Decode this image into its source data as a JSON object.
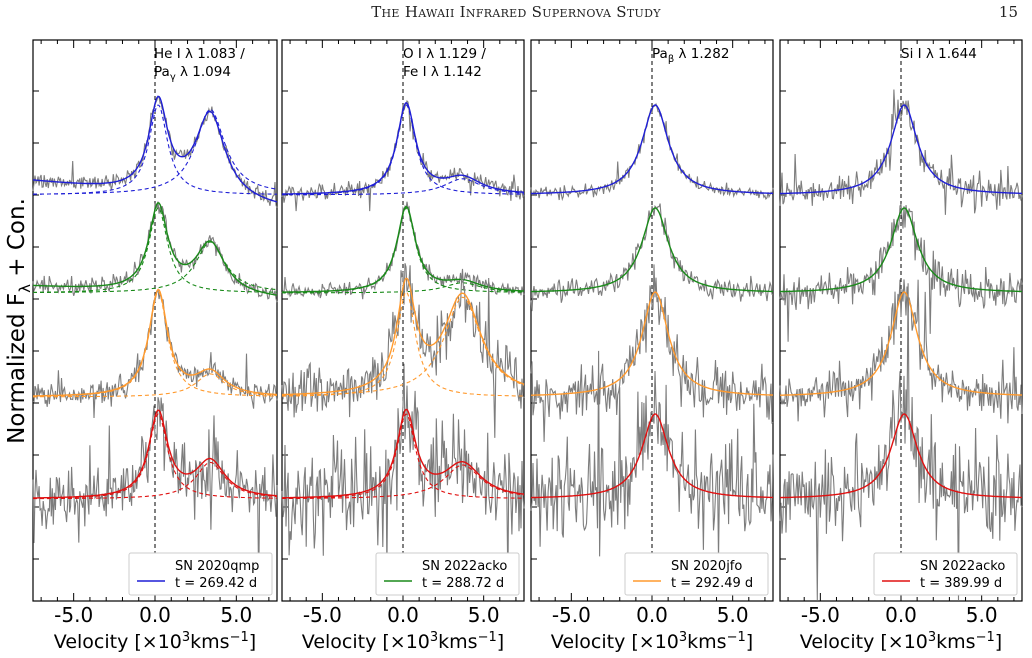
{
  "page": {
    "running_head": "The Hawaii Infrared Supernova Study",
    "page_number": "15"
  },
  "figure": {
    "ylabel_main": "Normalized F",
    "ylabel_sub": "λ",
    "ylabel_tail": " + Con.",
    "xlabel_main": "Velocity [×10",
    "xlabel_sup": "3",
    "xlabel_units": "kms",
    "xlabel_units_sup": "−1",
    "xlabel_end": "]",
    "xtick_labels": [
      "-5.0",
      "0.0",
      "5.0"
    ],
    "colors": {
      "epoch1": "#1f1fd6",
      "epoch2": "#1a8a1a",
      "epoch3": "#ff9a2e",
      "epoch4": "#e01010",
      "data": "#7d7d7d",
      "axes": "#000000"
    }
  },
  "chart_data": [
    {
      "type": "line",
      "panel": "He I 1.083 / Pa gamma 1.094",
      "line_label_1": "He I λ 1.083 /",
      "line_label_2": "Pa",
      "line_label_2_sub": "γ",
      "line_label_2_end": " λ 1.094",
      "legend": {
        "name": "SN 2020qmp",
        "time": "t = 269.42 d",
        "color": "#1f1fd6"
      },
      "xlim": [
        -7.5,
        7.5
      ],
      "xticks": [
        -5.0,
        0.0,
        5.0
      ],
      "components": [
        {
          "center": 0.2,
          "width": 0.7
        },
        {
          "center": 3.4,
          "width": 1.1
        }
      ],
      "series": [
        {
          "epoch": 1,
          "color": "#1f1fd6",
          "baseline": 0.0,
          "amps": [
            1.0,
            0.95
          ],
          "slope": -0.02
        },
        {
          "epoch": 2,
          "color": "#1a8a1a",
          "baseline": 0.0,
          "amps": [
            1.0,
            0.6
          ],
          "slope": -0.01
        },
        {
          "epoch": 3,
          "color": "#ff9a2e",
          "baseline": 0.0,
          "amps": [
            1.0,
            0.22
          ],
          "slope": 0.0
        },
        {
          "epoch": 4,
          "color": "#e01010",
          "baseline": 0.0,
          "amps": [
            1.0,
            0.43
          ],
          "slope": 0.0
        }
      ]
    },
    {
      "type": "line",
      "panel": "O I 1.129 / Fe I 1.142",
      "line_label_1": "O I λ 1.129 /",
      "line_label_2": "Fe I λ 1.142",
      "legend": {
        "name": "SN 2022acko",
        "time": "t = 288.72 d",
        "color": "#1a8a1a"
      },
      "xlim": [
        -7.5,
        7.5
      ],
      "xticks": [
        -5.0,
        0.0,
        5.0
      ],
      "components": [
        {
          "center": 0.2,
          "width": 0.7
        },
        {
          "center": 3.7,
          "width": 1.4
        }
      ],
      "series": [
        {
          "epoch": 1,
          "color": "#1f1fd6",
          "baseline": 0.0,
          "amps": [
            1.0,
            0.18
          ],
          "slope": 0.0
        },
        {
          "epoch": 2,
          "color": "#1a8a1a",
          "baseline": 0.0,
          "amps": [
            1.0,
            0.12
          ],
          "slope": 0.0
        },
        {
          "epoch": 3,
          "color": "#ff9a2e",
          "baseline": 0.0,
          "amps": [
            1.0,
            0.95
          ],
          "slope": 0.0
        },
        {
          "epoch": 4,
          "color": "#e01010",
          "baseline": 0.0,
          "amps": [
            1.0,
            0.4
          ],
          "slope": 0.0
        }
      ]
    },
    {
      "type": "line",
      "panel": "Pa beta 1.282",
      "line_label_1": "Pa",
      "line_label_1_sub": "β",
      "line_label_1_end": " λ 1.282",
      "legend": {
        "name": "SN 2020jfo",
        "time": "t = 292.49 d",
        "color": "#ff9a2e"
      },
      "xlim": [
        -7.5,
        7.5
      ],
      "xticks": [
        -5.0,
        0.0,
        5.0
      ],
      "components": [
        {
          "center": 0.2,
          "width": 1.0
        }
      ],
      "series": [
        {
          "epoch": 1,
          "color": "#1f1fd6",
          "baseline": 0.0,
          "amps": [
            1.0
          ],
          "slope": 0.0
        },
        {
          "epoch": 2,
          "color": "#1a8a1a",
          "baseline": 0.0,
          "amps": [
            1.0
          ],
          "slope": 0.0
        },
        {
          "epoch": 3,
          "color": "#ff9a2e",
          "baseline": 0.0,
          "amps": [
            1.0
          ],
          "slope": 0.0
        },
        {
          "epoch": 4,
          "color": "#e01010",
          "baseline": 0.0,
          "amps": [
            1.0
          ],
          "slope": 0.0
        }
      ]
    },
    {
      "type": "line",
      "panel": "Si I 1.644",
      "line_label_1": "Si I λ 1.644",
      "legend": {
        "name": "SN 2022acko",
        "time": "t = 389.99 d",
        "color": "#e01010"
      },
      "xlim": [
        -7.5,
        7.5
      ],
      "xticks": [
        -5.0,
        0.0,
        5.0
      ],
      "components": [
        {
          "center": 0.2,
          "width": 1.0
        }
      ],
      "series": [
        {
          "epoch": 1,
          "color": "#1f1fd6",
          "baseline": 0.0,
          "amps": [
            1.0
          ],
          "slope": 0.0
        },
        {
          "epoch": 2,
          "color": "#1a8a1a",
          "baseline": 0.0,
          "amps": [
            1.0
          ],
          "slope": 0.0
        },
        {
          "epoch": 3,
          "color": "#ff9a2e",
          "baseline": 0.0,
          "amps": [
            1.0
          ],
          "slope": 0.0
        },
        {
          "epoch": 4,
          "color": "#e01010",
          "baseline": 0.0,
          "amps": [
            1.0
          ],
          "slope": 0.0
        }
      ]
    }
  ]
}
